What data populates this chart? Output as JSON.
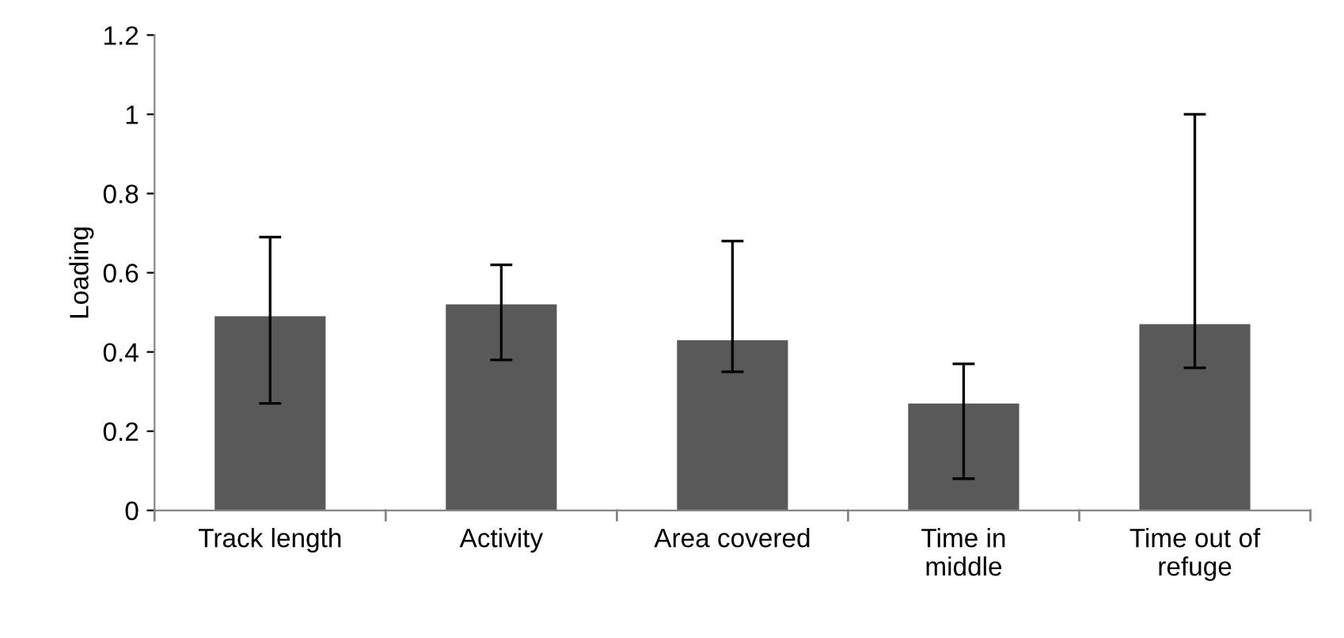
{
  "chart_data": {
    "type": "bar",
    "ylabel": "Loading",
    "categories": [
      "Track length",
      "Activity",
      "Area covered",
      "Time in\nmiddle",
      "Time out of\nrefuge"
    ],
    "values": [
      0.49,
      0.52,
      0.43,
      0.27,
      0.47
    ],
    "errors": [
      [
        0.27,
        0.69
      ],
      [
        0.38,
        0.62
      ],
      [
        0.35,
        0.68
      ],
      [
        0.08,
        0.37
      ],
      [
        0.36,
        1.0
      ]
    ],
    "color": "#595959",
    "ylim": [
      0,
      1.2
    ],
    "yticks": [
      0,
      0.2,
      0.4,
      0.6,
      0.8,
      1,
      1.2
    ],
    "grid": false,
    "legend": false
  }
}
